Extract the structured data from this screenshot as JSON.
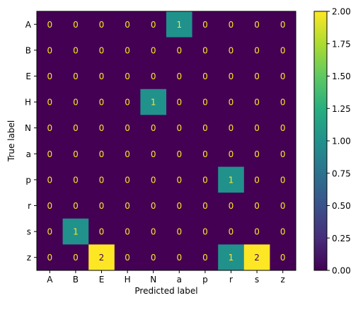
{
  "chart_data": {
    "type": "heatmap",
    "title": "",
    "xlabel": "Predicted label",
    "ylabel": "True label",
    "x_categories": [
      "A",
      "B",
      "E",
      "H",
      "N",
      "a",
      "p",
      "r",
      "s",
      "z"
    ],
    "y_categories": [
      "A",
      "B",
      "E",
      "H",
      "N",
      "a",
      "p",
      "r",
      "s",
      "z"
    ],
    "matrix": [
      [
        0,
        0,
        0,
        0,
        0,
        1,
        0,
        0,
        0,
        0
      ],
      [
        0,
        0,
        0,
        0,
        0,
        0,
        0,
        0,
        0,
        0
      ],
      [
        0,
        0,
        0,
        0,
        0,
        0,
        0,
        0,
        0,
        0
      ],
      [
        0,
        0,
        0,
        0,
        1,
        0,
        0,
        0,
        0,
        0
      ],
      [
        0,
        0,
        0,
        0,
        0,
        0,
        0,
        0,
        0,
        0
      ],
      [
        0,
        0,
        0,
        0,
        0,
        0,
        0,
        0,
        0,
        0
      ],
      [
        0,
        0,
        0,
        0,
        0,
        0,
        0,
        1,
        0,
        0
      ],
      [
        0,
        0,
        0,
        0,
        0,
        0,
        0,
        0,
        0,
        0
      ],
      [
        0,
        1,
        0,
        0,
        0,
        0,
        0,
        0,
        0,
        0
      ],
      [
        0,
        0,
        2,
        0,
        0,
        0,
        0,
        1,
        2,
        0
      ]
    ],
    "colormap": "viridis",
    "colorbar": {
      "range": [
        0,
        2
      ],
      "ticks": [
        0.0,
        0.25,
        0.5,
        0.75,
        1.0,
        1.25,
        1.5,
        1.75,
        2.0
      ],
      "tick_labels": [
        "0.00",
        "0.25",
        "0.50",
        "0.75",
        "1.00",
        "1.25",
        "1.50",
        "1.75",
        "2.00"
      ]
    },
    "colors": {
      "low": "#440154",
      "mid": "#21918c",
      "high": "#fde725"
    },
    "grid": false
  }
}
